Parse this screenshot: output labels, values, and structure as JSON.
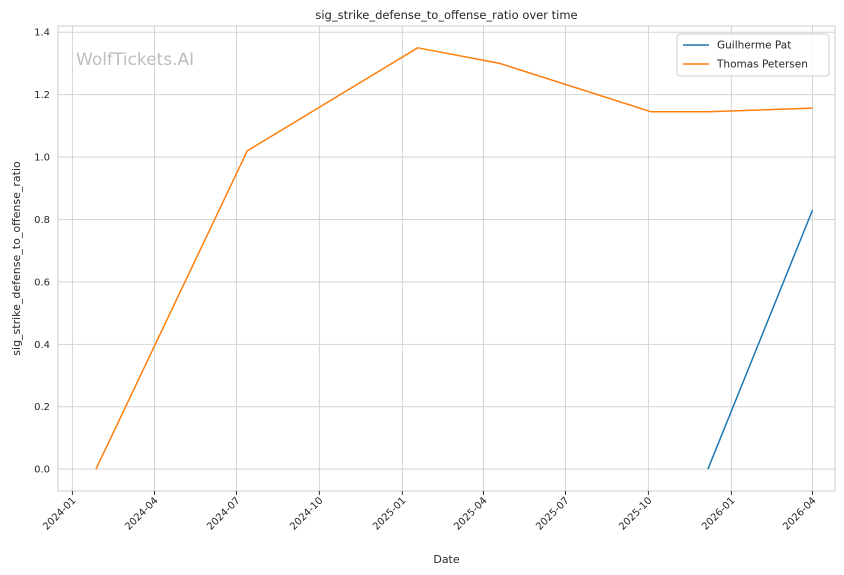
{
  "chart_data": {
    "type": "line",
    "title": "sig_strike_defense_to_offense_ratio over time",
    "xlabel": "Date",
    "ylabel": "sig_strike_defense_to_offense_ratio",
    "watermark": "WolfTickets.AI",
    "xlim": [
      "2023-12-16",
      "2026-04-26"
    ],
    "ylim": [
      -0.07,
      1.42
    ],
    "x_ticks": [
      "2024-01",
      "2024-04",
      "2024-07",
      "2024-10",
      "2025-01",
      "2025-04",
      "2025-07",
      "2025-10",
      "2026-01",
      "2026-04"
    ],
    "y_ticks": [
      0.0,
      0.2,
      0.4,
      0.6,
      0.8,
      1.0,
      1.2,
      1.4
    ],
    "grid": true,
    "legend_position": "top-right",
    "series": [
      {
        "name": "Guilherme Pat",
        "color": "#1f77b4",
        "points": [
          {
            "x": "2025-12-06",
            "y": 0.0
          },
          {
            "x": "2026-04-01",
            "y": 0.83
          }
        ]
      },
      {
        "name": "Thomas Petersen",
        "color": "#ff7f0e",
        "points": [
          {
            "x": "2024-01-27",
            "y": 0.0
          },
          {
            "x": "2024-07-13",
            "y": 1.02
          },
          {
            "x": "2025-01-18",
            "y": 1.35
          },
          {
            "x": "2025-04-19",
            "y": 1.3
          },
          {
            "x": "2025-10-04",
            "y": 1.145
          },
          {
            "x": "2025-12-06",
            "y": 1.145
          },
          {
            "x": "2026-04-01",
            "y": 1.157
          }
        ]
      }
    ]
  }
}
